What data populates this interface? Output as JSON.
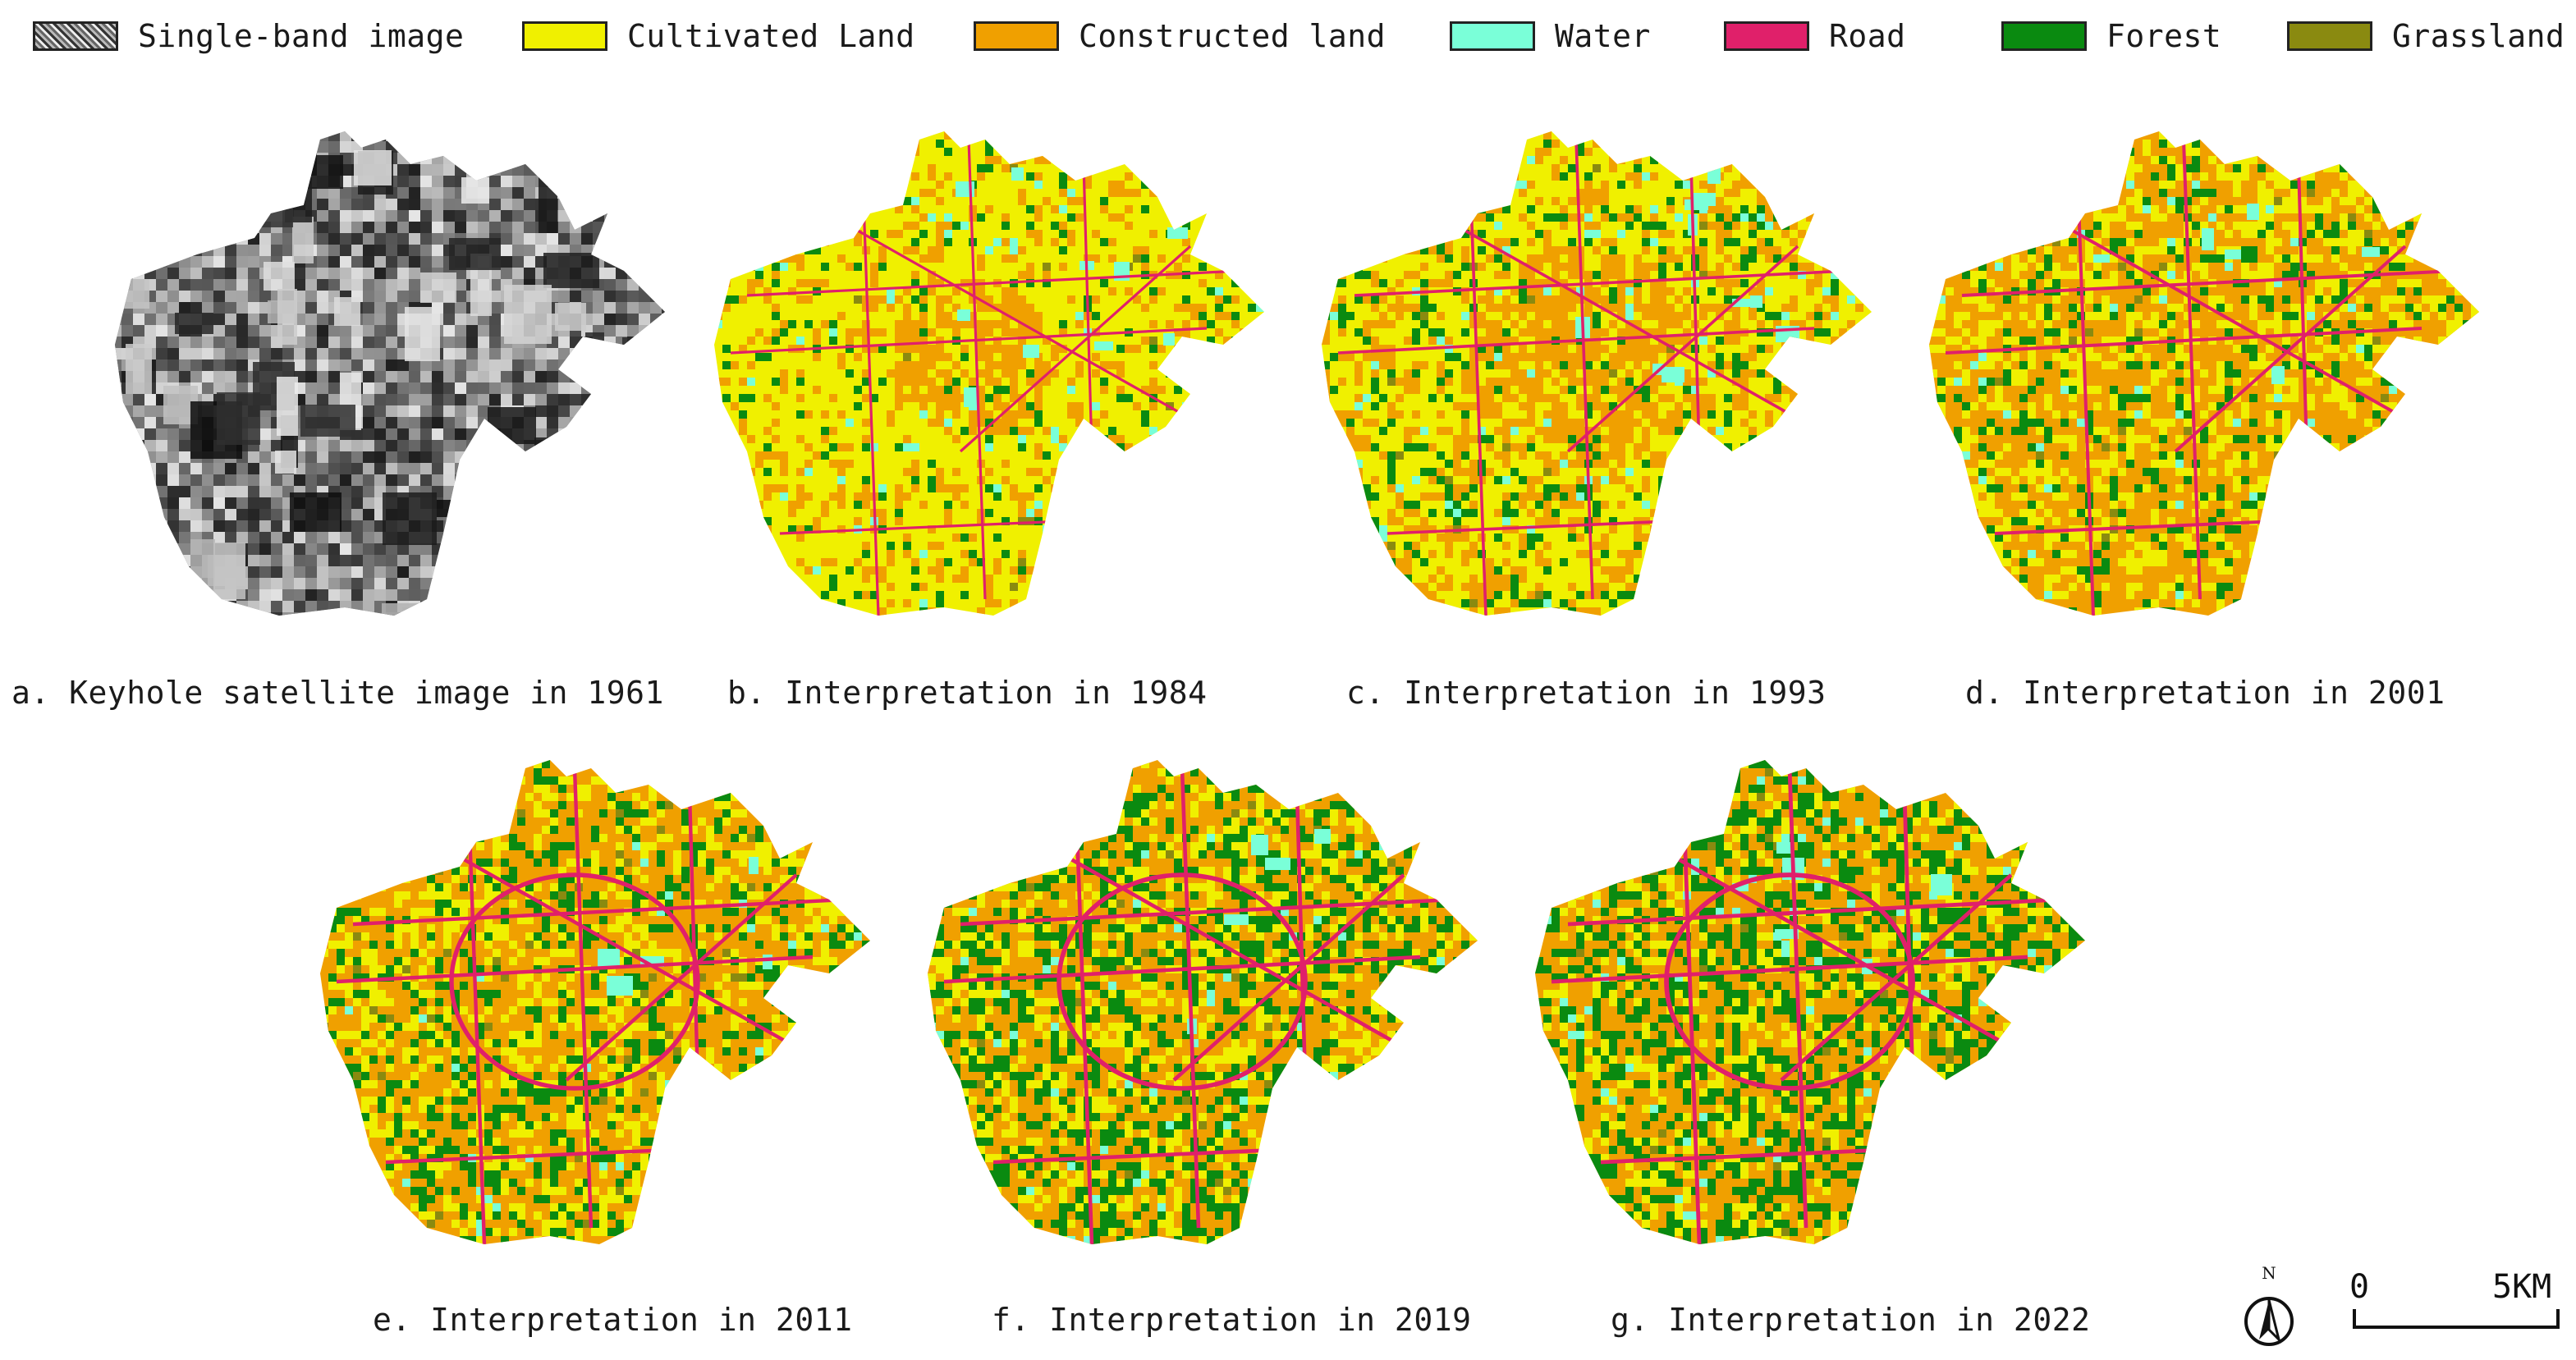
{
  "legend": [
    {
      "label": "Single-band image",
      "color": "#8a8a8a",
      "texture": true
    },
    {
      "label": "Cultivated Land",
      "color": "#f0f000"
    },
    {
      "label": "Constructed land",
      "color": "#f0a000"
    },
    {
      "label": "Water",
      "color": "#7affd8"
    },
    {
      "label": "Road",
      "color": "#e0206a"
    },
    {
      "label": "Forest",
      "color": "#0a8a10"
    },
    {
      "label": "Grassland",
      "color": "#8a8a10"
    }
  ],
  "panels": [
    {
      "caption": "a. Keyhole satellite image in 1961",
      "style": "satellite"
    },
    {
      "caption": "b. Interpretation in 1984",
      "style": "1984"
    },
    {
      "caption": "c. Interpretation in 1993",
      "style": "1993"
    },
    {
      "caption": "d. Interpretation in 2001",
      "style": "2001"
    },
    {
      "caption": "e. Interpretation in 2011",
      "style": "2011"
    },
    {
      "caption": "f. Interpretation in 2019",
      "style": "2019"
    },
    {
      "caption": "g. Interpretation in 2022",
      "style": "2022"
    }
  ],
  "north_arrow": {
    "label": "N"
  },
  "scale_bar": {
    "start_label": "0",
    "end_label": "5KM"
  }
}
